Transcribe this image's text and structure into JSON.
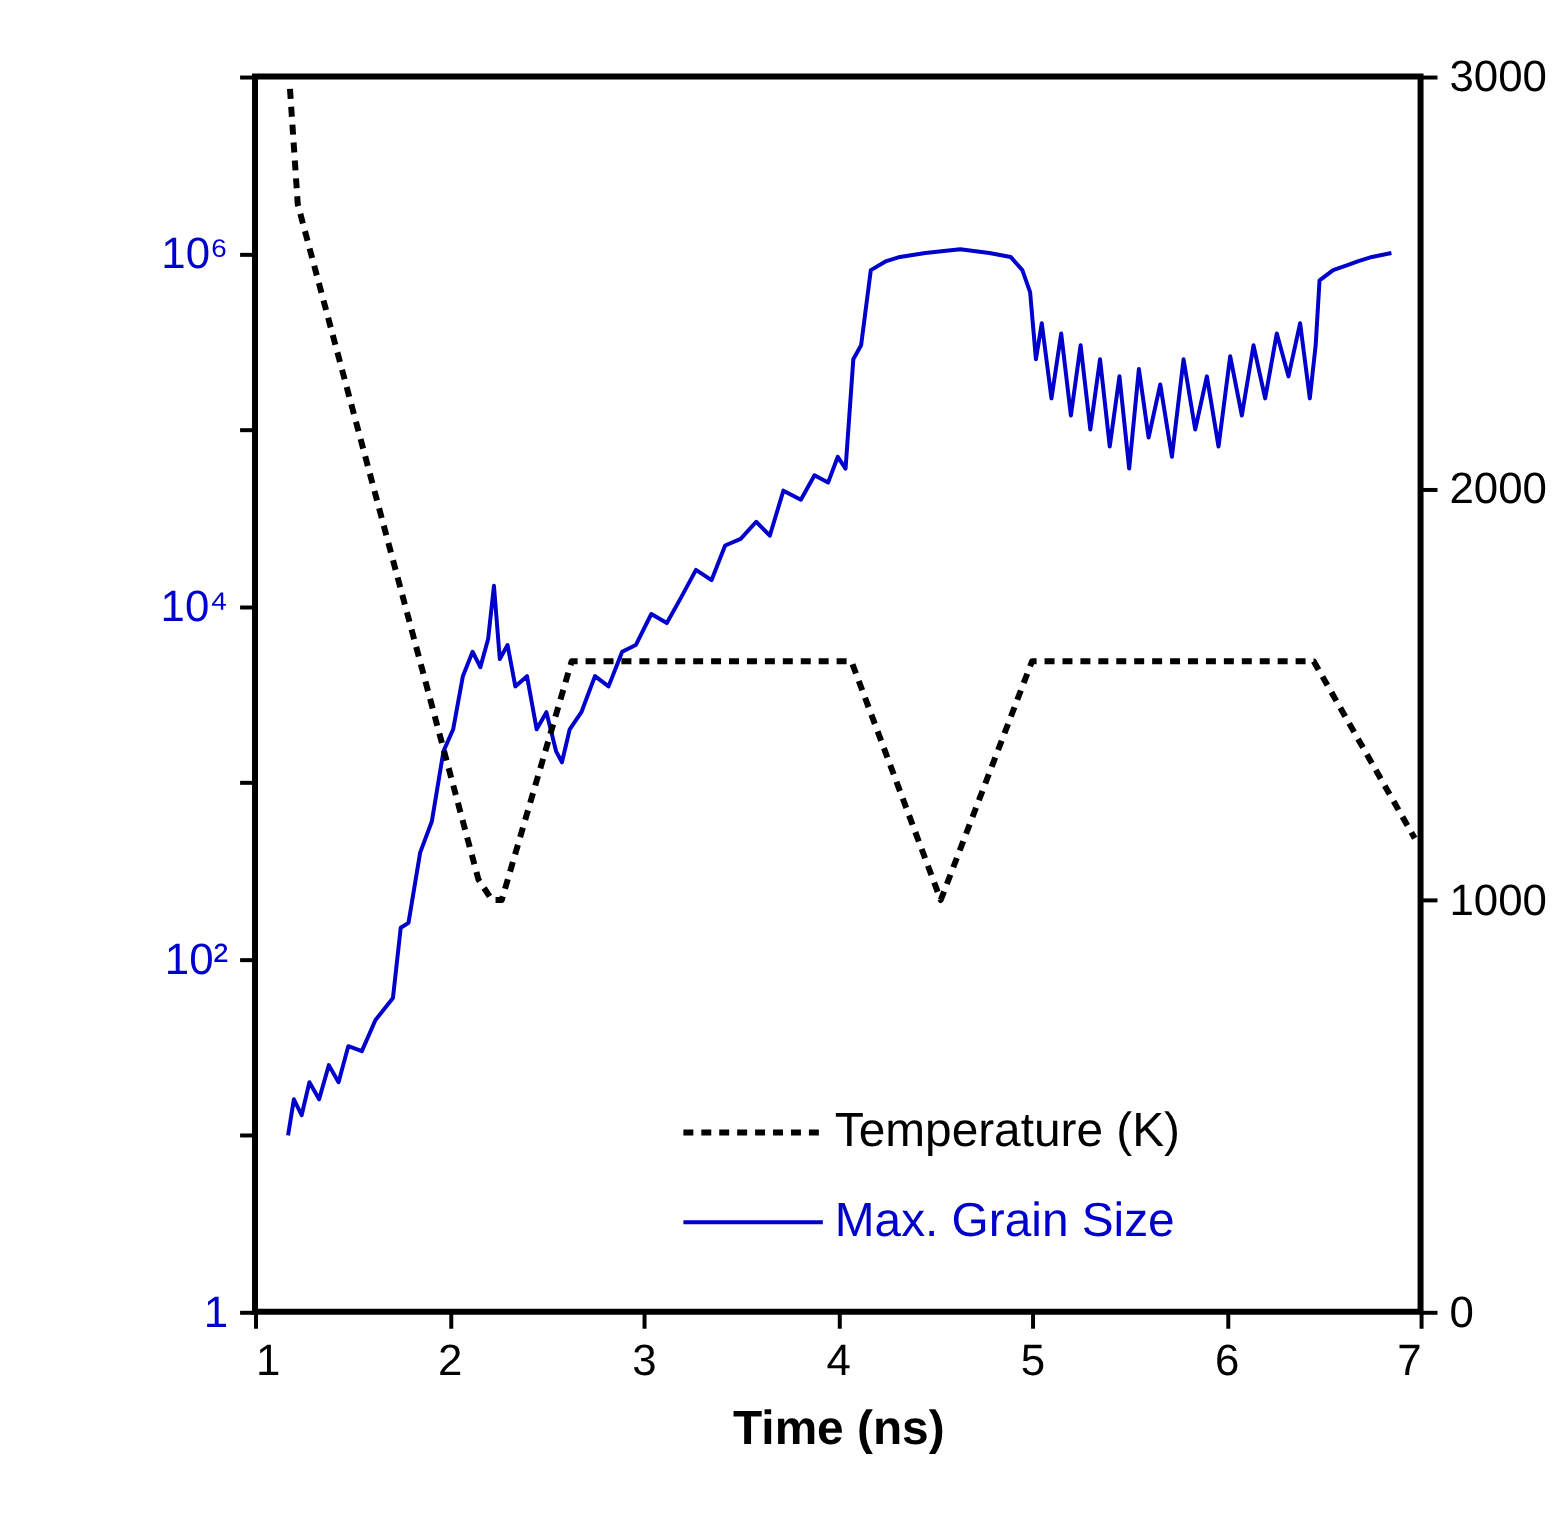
{
  "chart_data": {
    "type": "line",
    "xlabel": "Time (ns)",
    "xlim": [
      1,
      7
    ],
    "xticks": [
      1,
      2,
      3,
      4,
      5,
      6,
      7
    ],
    "ylim": [
      1,
      10000000
    ],
    "yticks": [
      {
        "value": 1,
        "label": "1"
      },
      {
        "value": 10,
        "label": null
      },
      {
        "value": 100,
        "label": "10²"
      },
      {
        "value": 1000,
        "label": null
      },
      {
        "value": 10000,
        "label": "10⁴"
      },
      {
        "value": 100000,
        "label": null
      },
      {
        "value": 1000000,
        "label": "10⁶"
      },
      {
        "value": 10000000,
        "label": null
      }
    ],
    "log": "y",
    "y2lim": [
      0,
      3000
    ],
    "y2ticks": [
      0,
      1000,
      2000,
      3000
    ],
    "grid": false,
    "legend": "bottom right",
    "series": [
      {
        "name": "Temperature (K)",
        "color": "#000000",
        "axis": "y2",
        "line_style": "dashed",
        "x": [
          1.18,
          1.22,
          2.15,
          2.22,
          2.27,
          2.63,
          4.07,
          4.53,
          5.0,
          6.45,
          6.97
        ],
        "values": [
          2970,
          2690,
          1050,
          1000,
          1000,
          1580,
          1580,
          1000,
          1580,
          1580,
          1150
        ]
      },
      {
        "name": "Max. Grain Size",
        "color": "#0000cc",
        "line_style": "solid",
        "x": [
          1.17,
          1.2,
          1.24,
          1.28,
          1.33,
          1.38,
          1.43,
          1.48,
          1.55,
          1.62,
          1.71,
          1.75,
          1.79,
          1.85,
          1.91,
          1.97,
          2.02,
          2.07,
          2.12,
          2.16,
          2.2,
          2.23,
          2.26,
          2.3,
          2.34,
          2.4,
          2.45,
          2.5,
          2.55,
          2.58,
          2.62,
          2.68,
          2.75,
          2.82,
          2.89,
          2.96,
          3.04,
          3.12,
          3.19,
          3.27,
          3.35,
          3.42,
          3.5,
          3.58,
          3.65,
          3.72,
          3.81,
          3.88,
          3.95,
          4.0,
          4.04,
          4.08,
          4.12,
          4.17,
          4.25,
          4.32,
          4.45,
          4.63,
          4.78,
          4.89,
          4.95,
          4.99,
          5.02,
          5.05,
          5.1,
          5.15,
          5.2,
          5.25,
          5.3,
          5.35,
          5.4,
          5.45,
          5.5,
          5.55,
          5.6,
          5.66,
          5.72,
          5.78,
          5.84,
          5.9,
          5.96,
          6.02,
          6.08,
          6.14,
          6.2,
          6.26,
          6.32,
          6.38,
          6.43,
          6.46,
          6.48,
          6.55,
          6.62,
          6.68,
          6.75,
          6.85
        ],
        "values": [
          10,
          16,
          13,
          20,
          16,
          25,
          20,
          32,
          30,
          45,
          60,
          150,
          160,
          400,
          600,
          1500,
          2000,
          4000,
          5500,
          4500,
          6500,
          13000,
          5000,
          6000,
          3500,
          4000,
          2000,
          2500,
          1500,
          1300,
          2000,
          2500,
          4000,
          3500,
          5500,
          6000,
          9000,
          8000,
          11000,
          16000,
          14000,
          22000,
          24000,
          30000,
          25000,
          45000,
          40000,
          55000,
          50000,
          70000,
          60000,
          250000,
          300000,
          800000,
          900000,
          950000,
          1000000,
          1050000,
          1000000,
          950000,
          800000,
          600000,
          250000,
          400000,
          150000,
          350000,
          120000,
          300000,
          100000,
          250000,
          80000,
          200000,
          60000,
          220000,
          90000,
          180000,
          70000,
          250000,
          100000,
          200000,
          80000,
          260000,
          120000,
          300000,
          150000,
          350000,
          200000,
          400000,
          150000,
          300000,
          700000,
          800000,
          850000,
          900000,
          950000,
          1000000
        ]
      }
    ]
  }
}
